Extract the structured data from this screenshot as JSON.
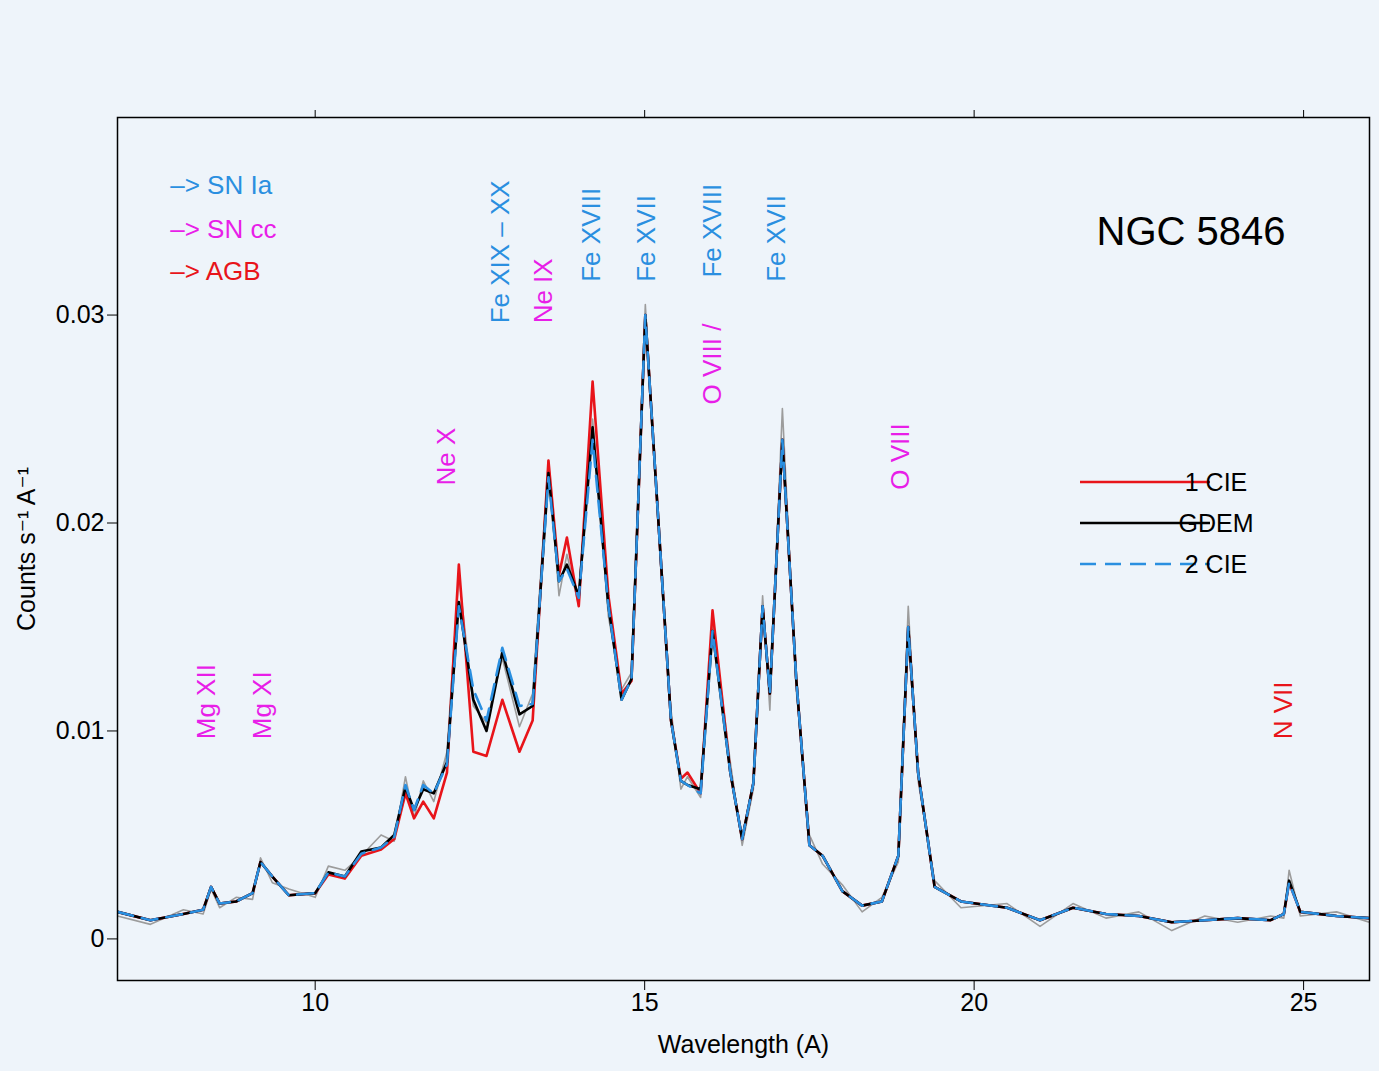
{
  "chart_data": {
    "type": "line",
    "title": "NGC 5846",
    "x_label": "Wavelength (A)",
    "y_label": "Counts s⁻¹ A⁻¹",
    "x": [
      7.0,
      7.5,
      8.0,
      8.3,
      8.42,
      8.55,
      8.8,
      9.05,
      9.17,
      9.35,
      9.6,
      10.0,
      10.2,
      10.45,
      10.7,
      11.0,
      11.2,
      11.37,
      11.5,
      11.64,
      11.8,
      12.0,
      12.18,
      12.4,
      12.6,
      12.84,
      13.1,
      13.3,
      13.54,
      13.7,
      13.82,
      14.0,
      14.21,
      14.45,
      14.65,
      14.8,
      15.01,
      15.25,
      15.4,
      15.55,
      15.65,
      15.85,
      16.03,
      16.3,
      16.48,
      16.65,
      16.79,
      16.9,
      17.09,
      17.3,
      17.5,
      17.7,
      18.0,
      18.3,
      18.6,
      18.85,
      19.0,
      19.15,
      19.4,
      19.8,
      20.5,
      21.0,
      21.5,
      22.0,
      22.5,
      23.0,
      23.5,
      24.0,
      24.5,
      24.7,
      24.78,
      24.95,
      25.5,
      26.0
    ],
    "xlim": [
      7,
      26
    ],
    "xticks": [
      10,
      15,
      20,
      25
    ],
    "ylim": [
      -0.002,
      0.0395
    ],
    "yticks": [
      0,
      0.01,
      0.02,
      0.03
    ],
    "legend": "right",
    "series": [
      {
        "color": "#9c9c9c",
        "line_style": "solid",
        "values": [
          0.0011,
          0.0007,
          0.0014,
          0.0012,
          0.0024,
          0.0015,
          0.002,
          0.0019,
          0.0039,
          0.0027,
          0.0024,
          0.002,
          0.0035,
          0.0033,
          0.004,
          0.005,
          0.0047,
          0.0078,
          0.0058,
          0.0076,
          0.0066,
          0.009,
          0.0175,
          0.0112,
          0.0104,
          0.0135,
          0.0102,
          0.0118,
          0.023,
          0.0165,
          0.0185,
          0.016,
          0.025,
          0.0155,
          0.012,
          0.0128,
          0.0305,
          0.0175,
          0.011,
          0.0072,
          0.0078,
          0.0068,
          0.0152,
          0.0085,
          0.0045,
          0.0072,
          0.0165,
          0.011,
          0.0255,
          0.012,
          0.005,
          0.0036,
          0.0026,
          0.0013,
          0.002,
          0.0037,
          0.016,
          0.0076,
          0.0028,
          0.0015,
          0.0017,
          0.0006,
          0.0017,
          0.001,
          0.0013,
          0.0004,
          0.0011,
          0.0008,
          0.0011,
          0.001,
          0.0033,
          0.0011,
          0.0013,
          0.0008
        ]
      },
      {
        "name": "1 CIE",
        "color": "#e8141a",
        "line_style": "solid",
        "values": [
          0.0013,
          0.0009,
          0.0012,
          0.0014,
          0.0025,
          0.0017,
          0.0018,
          0.0022,
          0.0037,
          0.003,
          0.0021,
          0.0022,
          0.0031,
          0.0029,
          0.004,
          0.0043,
          0.0048,
          0.007,
          0.0058,
          0.0066,
          0.0058,
          0.008,
          0.018,
          0.009,
          0.0088,
          0.0115,
          0.009,
          0.0105,
          0.023,
          0.0175,
          0.0193,
          0.016,
          0.0268,
          0.0165,
          0.0118,
          0.0124,
          0.03,
          0.018,
          0.0105,
          0.0077,
          0.008,
          0.007,
          0.0158,
          0.008,
          0.0048,
          0.0075,
          0.016,
          0.0118,
          0.024,
          0.0125,
          0.0045,
          0.004,
          0.0023,
          0.0016,
          0.0018,
          0.004,
          0.015,
          0.008,
          0.0025,
          0.0018,
          0.0015,
          0.0009,
          0.0015,
          0.0012,
          0.0011,
          0.0008,
          0.0009,
          0.001,
          0.0009,
          0.0012,
          0.0027,
          0.0013,
          0.0011,
          0.001
        ]
      },
      {
        "name": "GDEM",
        "color": "#000000",
        "line_style": "solid",
        "values": [
          0.0013,
          0.0009,
          0.0012,
          0.0014,
          0.0025,
          0.0017,
          0.0018,
          0.0022,
          0.0037,
          0.003,
          0.0021,
          0.0022,
          0.0032,
          0.003,
          0.0042,
          0.0044,
          0.005,
          0.0073,
          0.0062,
          0.0072,
          0.007,
          0.0085,
          0.0162,
          0.0115,
          0.01,
          0.0138,
          0.0108,
          0.0112,
          0.0224,
          0.0172,
          0.018,
          0.0165,
          0.0246,
          0.016,
          0.0115,
          0.0125,
          0.03,
          0.018,
          0.0105,
          0.0076,
          0.0074,
          0.0072,
          0.0148,
          0.008,
          0.0048,
          0.0075,
          0.016,
          0.0118,
          0.024,
          0.0125,
          0.0045,
          0.004,
          0.0023,
          0.0016,
          0.0018,
          0.004,
          0.015,
          0.008,
          0.0025,
          0.0018,
          0.0015,
          0.0009,
          0.0015,
          0.0012,
          0.0011,
          0.0008,
          0.0009,
          0.001,
          0.0009,
          0.0012,
          0.0028,
          0.0013,
          0.0011,
          0.001
        ]
      },
      {
        "name": "2 CIE",
        "color": "#2a8fe0",
        "line_style": "dashed",
        "values": [
          0.0013,
          0.0009,
          0.0012,
          0.0014,
          0.0025,
          0.0017,
          0.0018,
          0.0022,
          0.0037,
          0.003,
          0.0021,
          0.0022,
          0.0032,
          0.003,
          0.0041,
          0.0044,
          0.0049,
          0.0074,
          0.0062,
          0.0074,
          0.007,
          0.0084,
          0.016,
          0.012,
          0.0105,
          0.014,
          0.0112,
          0.0113,
          0.0222,
          0.0172,
          0.0178,
          0.0164,
          0.024,
          0.016,
          0.0115,
          0.0125,
          0.03,
          0.018,
          0.0105,
          0.0076,
          0.0074,
          0.007,
          0.0148,
          0.008,
          0.0048,
          0.0075,
          0.016,
          0.0118,
          0.024,
          0.0125,
          0.0045,
          0.004,
          0.0023,
          0.0016,
          0.0018,
          0.004,
          0.015,
          0.008,
          0.0025,
          0.0018,
          0.0015,
          0.0009,
          0.0015,
          0.0012,
          0.0011,
          0.0008,
          0.0009,
          0.001,
          0.0009,
          0.0012,
          0.0027,
          0.0013,
          0.0011,
          0.001
        ]
      }
    ],
    "line_labels": [
      {
        "text": "Mg XII",
        "x": 8.35,
        "y": 0.0096,
        "color": "#e81ee8"
      },
      {
        "text": "Mg XI",
        "x": 9.2,
        "y": 0.0096,
        "color": "#e81ee8"
      },
      {
        "text": "Ne X",
        "x": 12.0,
        "y": 0.0218,
        "color": "#e81ee8"
      },
      {
        "text": "Fe XIX – XX",
        "x": 12.82,
        "y": 0.0296,
        "color": "#2a8fe0"
      },
      {
        "text": "Ne IX",
        "x": 13.46,
        "y": 0.0296,
        "color": "#e81ee8"
      },
      {
        "text": "Fe XVIII",
        "x": 14.19,
        "y": 0.0316,
        "color": "#2a8fe0"
      },
      {
        "text": "Fe XVII",
        "x": 15.03,
        "y": 0.0316,
        "color": "#2a8fe0"
      },
      {
        "text": "O VIII /",
        "x": 16.03,
        "y": 0.0257,
        "color": "#e81ee8"
      },
      {
        "text": "Fe XVIII",
        "x": 16.03,
        "y": 0.0318,
        "color": "#2a8fe0"
      },
      {
        "text": "Fe XVII",
        "x": 17.0,
        "y": 0.0316,
        "color": "#2a8fe0"
      },
      {
        "text": "O VIII",
        "x": 18.88,
        "y": 0.0216,
        "color": "#e81ee8"
      },
      {
        "text": "N VII",
        "x": 24.7,
        "y": 0.0096,
        "color": "#e8141a"
      }
    ],
    "origin_key": [
      {
        "text": "–> SN Ia",
        "x": 7.8,
        "y": 0.0362,
        "color": "#2a8fe0"
      },
      {
        "text": "–> SN cc",
        "x": 7.8,
        "y": 0.0341,
        "color": "#e81ee8"
      },
      {
        "text": "–> AGB",
        "x": 7.8,
        "y": 0.0321,
        "color": "#e8141a"
      }
    ]
  }
}
